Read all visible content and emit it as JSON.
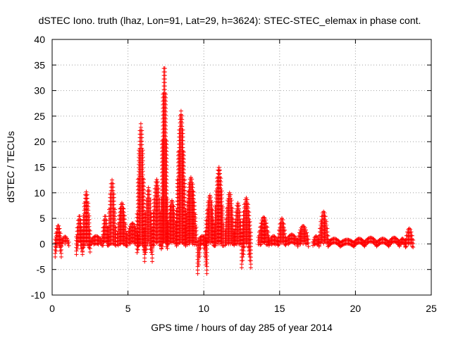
{
  "chart_data": {
    "type": "scatter",
    "title": "dSTEC Iono. truth (lhaz, Lon=91, Lat=29, h=3624): STEC-STEC_elemax in phase cont.",
    "xlabel": "GPS time / hours of day 285 of year 2014",
    "ylabel": "dSTEC  / TECUs",
    "xlim": [
      0,
      25
    ],
    "ylim": [
      -10,
      40
    ],
    "x_ticks": [
      0,
      5,
      10,
      15,
      20,
      25
    ],
    "y_ticks": [
      -10,
      -5,
      0,
      5,
      10,
      15,
      20,
      25,
      30,
      35,
      40
    ],
    "x_tick_labels": [
      "0",
      "5",
      "10",
      "15",
      "20",
      "25"
    ],
    "y_tick_labels": [
      "-10",
      "-5",
      "0",
      "5",
      "10",
      "15",
      "20",
      "25",
      "30",
      "35",
      "40"
    ],
    "grid": true,
    "marker": "+",
    "color": "#ff0000",
    "arcs": [
      {
        "start": 0.2,
        "end": 0.6,
        "min": -3.2,
        "max": 3.6
      },
      {
        "start": 0.6,
        "end": 1.1,
        "min": -0.5,
        "max": 1.4
      },
      {
        "start": 1.6,
        "end": 2.0,
        "min": -2.5,
        "max": 5.5
      },
      {
        "start": 2.0,
        "end": 2.5,
        "min": -2.0,
        "max": 10.2
      },
      {
        "start": 2.5,
        "end": 3.3,
        "min": -0.5,
        "max": 1.5
      },
      {
        "start": 3.3,
        "end": 3.7,
        "min": -0.5,
        "max": 5.5
      },
      {
        "start": 3.7,
        "end": 4.2,
        "min": -0.5,
        "max": 12.5
      },
      {
        "start": 4.3,
        "end": 4.9,
        "min": -0.5,
        "max": 8.0
      },
      {
        "start": 4.9,
        "end": 5.7,
        "min": -0.5,
        "max": 4.0
      },
      {
        "start": 5.6,
        "end": 6.1,
        "min": -2.0,
        "max": 23.5
      },
      {
        "start": 6.1,
        "end": 6.6,
        "min": -3.6,
        "max": 11.0
      },
      {
        "start": 6.6,
        "end": 7.2,
        "min": -1.0,
        "max": 12.6
      },
      {
        "start": 7.2,
        "end": 7.6,
        "min": -1.0,
        "max": 35.0
      },
      {
        "start": 7.6,
        "end": 8.2,
        "min": -0.5,
        "max": 8.5
      },
      {
        "start": 8.2,
        "end": 8.8,
        "min": -0.5,
        "max": 26.0
      },
      {
        "start": 8.8,
        "end": 9.5,
        "min": -0.5,
        "max": 13.0
      },
      {
        "start": 9.6,
        "end": 10.2,
        "min": -6.3,
        "max": 1.5
      },
      {
        "start": 10.1,
        "end": 10.7,
        "min": -0.5,
        "max": 9.5
      },
      {
        "start": 10.7,
        "end": 11.3,
        "min": -0.5,
        "max": 15.0
      },
      {
        "start": 11.4,
        "end": 12.0,
        "min": -0.5,
        "max": 10.0
      },
      {
        "start": 12.0,
        "end": 12.5,
        "min": -0.5,
        "max": 8.0
      },
      {
        "start": 12.5,
        "end": 13.1,
        "min": -5.0,
        "max": 9.0
      },
      {
        "start": 13.6,
        "end": 14.3,
        "min": -0.5,
        "max": 5.2
      },
      {
        "start": 14.3,
        "end": 14.9,
        "min": -0.5,
        "max": 1.5
      },
      {
        "start": 14.9,
        "end": 15.4,
        "min": -0.5,
        "max": 5.0
      },
      {
        "start": 15.4,
        "end": 16.2,
        "min": -0.5,
        "max": 1.8
      },
      {
        "start": 16.2,
        "end": 16.9,
        "min": -0.5,
        "max": 3.5
      },
      {
        "start": 17.2,
        "end": 17.6,
        "min": -0.5,
        "max": 1.5
      },
      {
        "start": 17.6,
        "end": 18.2,
        "min": -0.5,
        "max": 6.3
      },
      {
        "start": 18.2,
        "end": 19.0,
        "min": -0.5,
        "max": 1.0
      },
      {
        "start": 19.0,
        "end": 19.9,
        "min": -0.5,
        "max": 0.8
      },
      {
        "start": 19.9,
        "end": 20.6,
        "min": -0.5,
        "max": 1.0
      },
      {
        "start": 20.6,
        "end": 21.4,
        "min": -0.5,
        "max": 1.2
      },
      {
        "start": 21.4,
        "end": 22.2,
        "min": -0.5,
        "max": 1.0
      },
      {
        "start": 22.2,
        "end": 22.9,
        "min": -0.5,
        "max": 1.2
      },
      {
        "start": 22.9,
        "end": 23.3,
        "min": -0.8,
        "max": 1.0
      },
      {
        "start": 23.3,
        "end": 23.8,
        "min": -1.0,
        "max": 3.0
      }
    ]
  }
}
